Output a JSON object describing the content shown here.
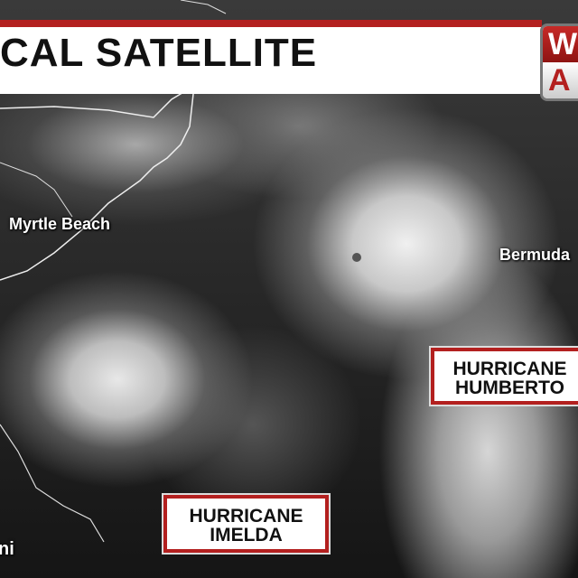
{
  "header": {
    "title": "CAL SATELLITE",
    "logo_text": "WA",
    "logo_top": "W",
    "logo_bottom": "A",
    "accent_color": "#b3201f"
  },
  "cities": {
    "myrtle_beach": "Myrtle Beach",
    "bermuda": "Bermuda",
    "miami": "ni"
  },
  "storms": {
    "humberto": {
      "line1": "HURRICANE",
      "line2": "HUMBERTO"
    },
    "imelda": {
      "line1": "HURRICANE",
      "line2": "IMELDA"
    }
  }
}
